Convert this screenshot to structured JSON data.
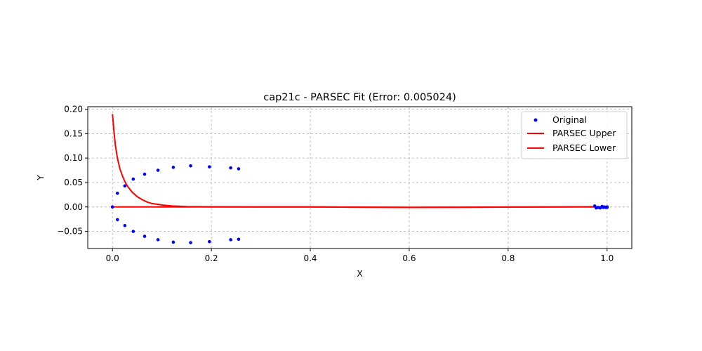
{
  "chart_data": {
    "type": "scatter",
    "title": "cap21c - PARSEC Fit (Error: 0.005024)",
    "xlabel": "X",
    "ylabel": "Y",
    "xlim": [
      -0.05,
      1.05
    ],
    "ylim": [
      -0.085,
      0.205
    ],
    "xticks": [
      0.0,
      0.2,
      0.4,
      0.6,
      0.8,
      1.0
    ],
    "xtick_labels": [
      "0.0",
      "0.2",
      "0.4",
      "0.6",
      "0.8",
      "1.0"
    ],
    "yticks": [
      -0.05,
      0.0,
      0.05,
      0.1,
      0.15,
      0.2
    ],
    "ytick_labels": [
      "−0.05",
      "0.00",
      "0.05",
      "0.10",
      "0.15",
      "0.20"
    ],
    "grid": true,
    "legend_position": "upper-right",
    "series": [
      {
        "name": "Original",
        "kind": "scatter",
        "color": "#0000ff",
        "points": [
          [
            0.0,
            0.0
          ],
          [
            0.01,
            0.028
          ],
          [
            0.025,
            0.043
          ],
          [
            0.042,
            0.057
          ],
          [
            0.065,
            0.067
          ],
          [
            0.092,
            0.075
          ],
          [
            0.123,
            0.081
          ],
          [
            0.158,
            0.084
          ],
          [
            0.196,
            0.082
          ],
          [
            0.239,
            0.08
          ],
          [
            0.255,
            0.078
          ],
          [
            0.01,
            -0.026
          ],
          [
            0.025,
            -0.038
          ],
          [
            0.042,
            -0.05
          ],
          [
            0.065,
            -0.06
          ],
          [
            0.092,
            -0.067
          ],
          [
            0.123,
            -0.072
          ],
          [
            0.158,
            -0.073
          ],
          [
            0.196,
            -0.071
          ],
          [
            0.239,
            -0.067
          ],
          [
            0.255,
            -0.066
          ],
          [
            0.975,
            0.002
          ],
          [
            0.978,
            -0.002
          ],
          [
            0.982,
            -0.001
          ],
          [
            0.986,
            -0.002
          ],
          [
            0.99,
            0.001
          ],
          [
            0.992,
            -0.001
          ],
          [
            0.995,
            0.0
          ],
          [
            0.997,
            -0.001
          ],
          [
            1.0,
            0.0
          ],
          [
            1.0,
            -0.001
          ]
        ]
      },
      {
        "name": "PARSEC Upper",
        "kind": "line",
        "color": "#ff0000",
        "points": [
          [
            0.0,
            0.19
          ],
          [
            0.003,
            0.155
          ],
          [
            0.006,
            0.125
          ],
          [
            0.01,
            0.1
          ],
          [
            0.015,
            0.078
          ],
          [
            0.02,
            0.064
          ],
          [
            0.025,
            0.052
          ],
          [
            0.03,
            0.043
          ],
          [
            0.04,
            0.03
          ],
          [
            0.05,
            0.021
          ],
          [
            0.06,
            0.015
          ],
          [
            0.07,
            0.01
          ],
          [
            0.08,
            0.007
          ],
          [
            0.1,
            0.004
          ],
          [
            0.12,
            0.002
          ],
          [
            0.15,
            0.0008
          ],
          [
            0.2,
            0.0002
          ],
          [
            0.3,
            0.0
          ],
          [
            0.4,
            0.0
          ],
          [
            0.5,
            -0.0005
          ],
          [
            0.6,
            -0.0008
          ],
          [
            0.7,
            -0.0006
          ],
          [
            0.8,
            -0.0002
          ],
          [
            0.9,
            0.0
          ],
          [
            0.97,
            0.0005
          ],
          [
            1.0,
            0.0
          ]
        ]
      },
      {
        "name": "PARSEC Lower",
        "kind": "line",
        "color": "#ff0000",
        "points": [
          [
            0.0,
            0.0
          ],
          [
            0.1,
            0.0
          ],
          [
            0.2,
            0.0
          ],
          [
            0.3,
            0.0
          ],
          [
            0.4,
            0.0
          ],
          [
            0.5,
            -0.0005
          ],
          [
            0.6,
            -0.0008
          ],
          [
            0.7,
            -0.0006
          ],
          [
            0.8,
            -0.0003
          ],
          [
            0.9,
            0.0
          ],
          [
            1.0,
            0.0
          ]
        ]
      }
    ]
  }
}
